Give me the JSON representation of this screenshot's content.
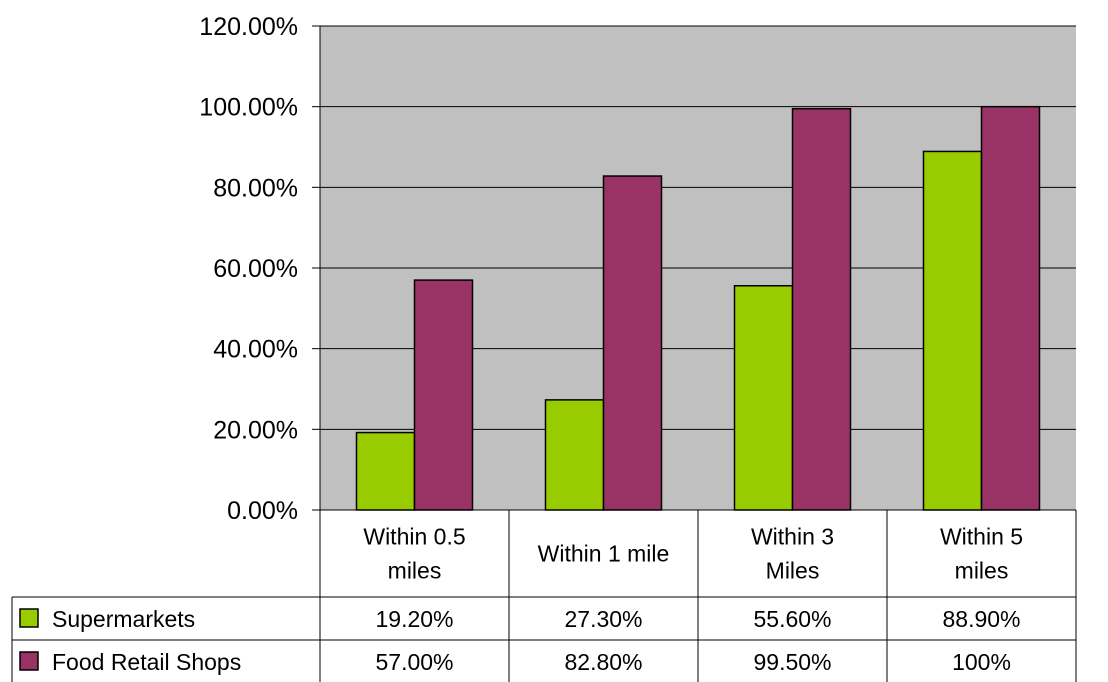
{
  "chart_data": {
    "type": "bar",
    "title": "",
    "xlabel": "",
    "ylabel": "",
    "ylim": [
      0,
      120
    ],
    "ytick_step": 20,
    "ytick_labels": [
      "0.00%",
      "20.00%",
      "40.00%",
      "60.00%",
      "80.00%",
      "100.00%",
      "120.00%"
    ],
    "grid": true,
    "legend": "data-table-left",
    "plot_background": "#c0c0c0",
    "categories": [
      [
        "Within 0.5",
        "miles"
      ],
      [
        "Within 1 mile"
      ],
      [
        "Within 3",
        "Miles"
      ],
      [
        "Within 5",
        "miles"
      ]
    ],
    "series": [
      {
        "name": "Supermarkets",
        "color": "#99cc00",
        "values": [
          19.2,
          27.3,
          55.6,
          88.9
        ],
        "table_labels": [
          "19.20%",
          "27.30%",
          "55.60%",
          "88.90%"
        ]
      },
      {
        "name": "Food Retail Shops",
        "color": "#993366",
        "values": [
          57.0,
          82.8,
          99.5,
          100
        ],
        "table_labels": [
          "57.00%",
          "82.80%",
          "99.50%",
          "100%"
        ]
      }
    ]
  }
}
